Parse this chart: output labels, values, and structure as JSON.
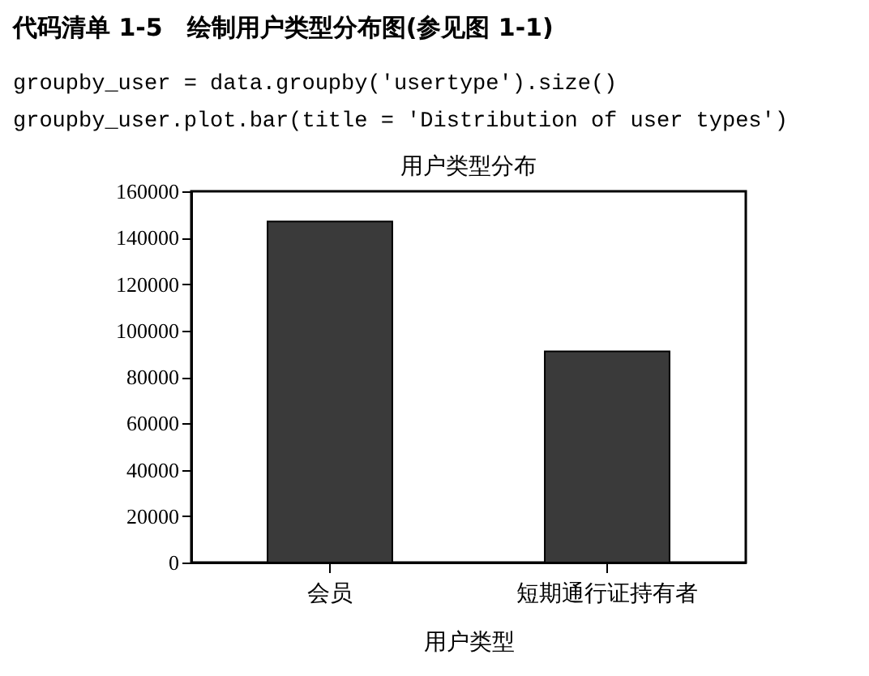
{
  "chart_data": {
    "type": "bar",
    "title": "用户类型分布",
    "xlabel": "用户类型",
    "categories": [
      "会员",
      "短期通行证持有者"
    ],
    "values": [
      147000,
      91000
    ],
    "color": "#3a3a3a",
    "ylim": [
      0,
      160000
    ],
    "yticks": [
      0,
      20000,
      40000,
      60000,
      80000,
      100000,
      120000,
      140000,
      160000
    ],
    "grid": false,
    "annotations": [
      "代码清单 1-5　绘制用户类型分布图(参见图 1-1)",
      "groupby_user = data.groupby('usertype').size()",
      "groupby_user.plot.bar(title = 'Distribution of user types')"
    ]
  }
}
